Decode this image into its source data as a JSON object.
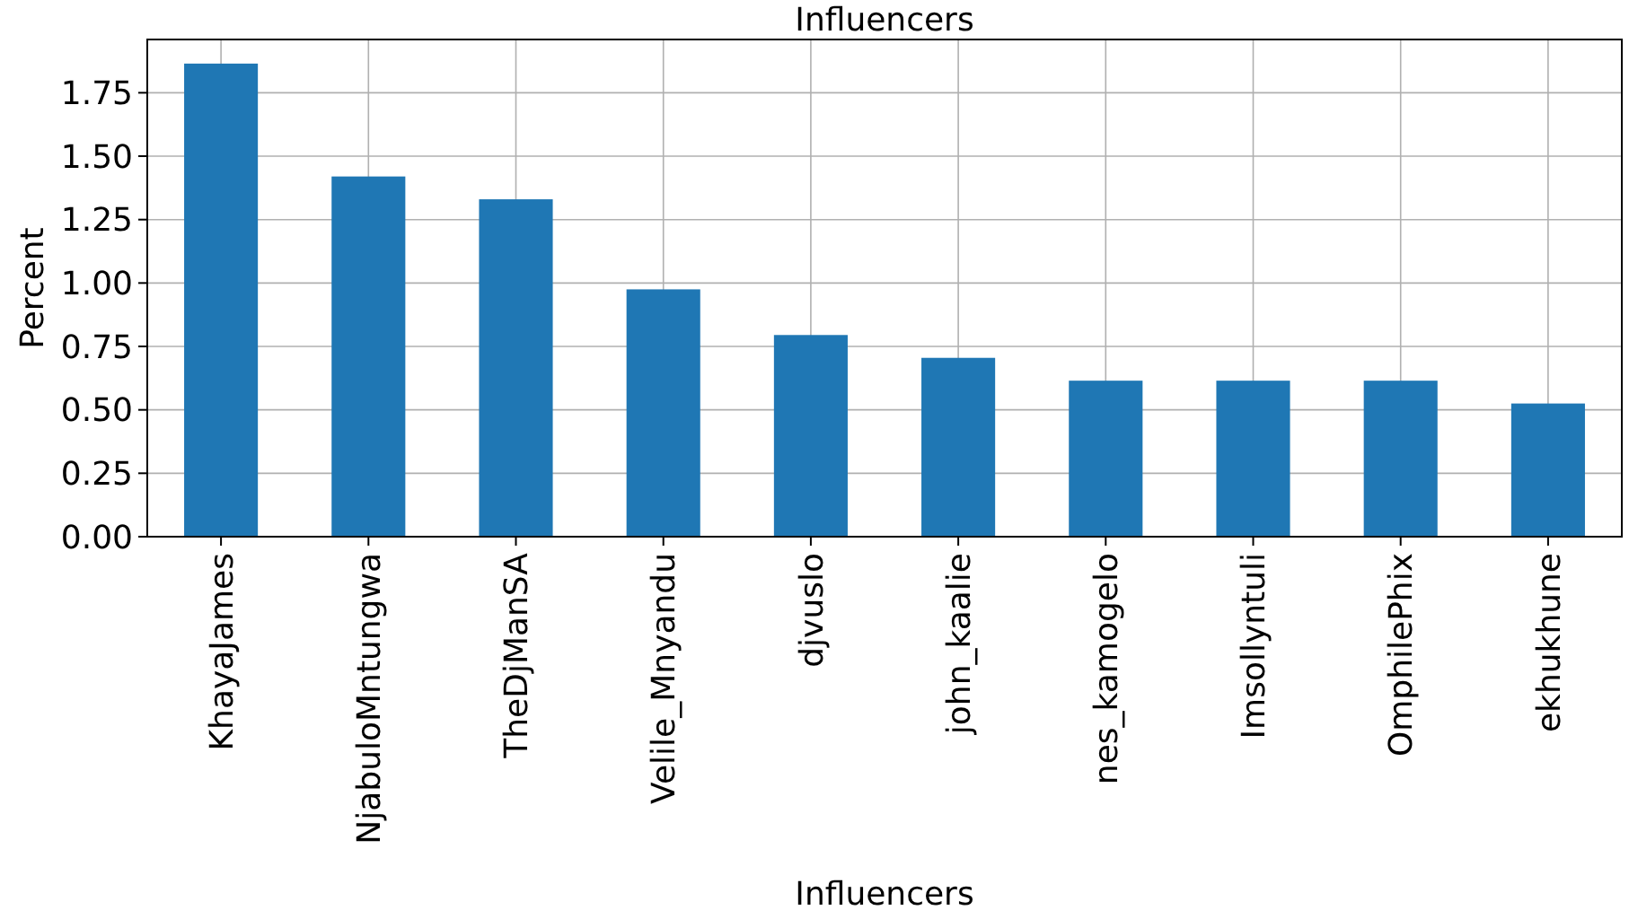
{
  "chart_data": {
    "type": "bar",
    "title": "Influencers",
    "xlabel": "Influencers",
    "ylabel": "Percent",
    "categories": [
      "KhayaJames",
      "NjabuloMntungwa",
      "TheDjManSA",
      "Velile_Mnyandu",
      "djvuslo",
      "john_kaalie",
      "nes_kamogelo",
      "Imsollyntuli",
      "OmphilePhix",
      "ekhukhune"
    ],
    "values": [
      1.865,
      1.42,
      1.33,
      0.975,
      0.795,
      0.705,
      0.615,
      0.615,
      0.615,
      0.525
    ],
    "color": "#1f77b4",
    "ylim": [
      0,
      1.96
    ],
    "yticks": [
      {
        "value": 0,
        "label": "0.00"
      },
      {
        "value": 0.25,
        "label": "0.25"
      },
      {
        "value": 0.5,
        "label": "0.50"
      },
      {
        "value": 0.75,
        "label": "0.75"
      },
      {
        "value": 1,
        "label": "1.00"
      },
      {
        "value": 1.25,
        "label": "1.25"
      },
      {
        "value": 1.5,
        "label": "1.50"
      },
      {
        "value": 1.75,
        "label": "1.75"
      }
    ],
    "grid": true
  }
}
